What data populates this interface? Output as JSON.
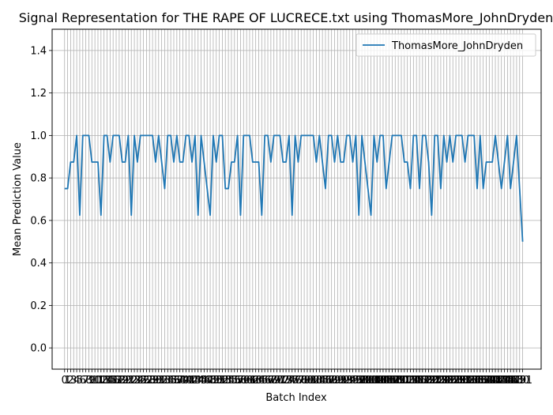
{
  "chart_data": {
    "type": "line",
    "title": "Signal Representation for THE RAPE OF LUCRECE.txt using ThomasMore_JohnDryden",
    "xlabel": "Batch Index",
    "ylabel": "Mean Prediction Value",
    "ylim": [
      -0.1,
      1.5
    ],
    "yticks": [
      0.0,
      0.2,
      0.4,
      0.6,
      0.8,
      1.0,
      1.2,
      1.4
    ],
    "ytick_labels": [
      "0.0",
      "0.2",
      "0.4",
      "0.6",
      "0.8",
      "1.0",
      "1.2",
      "1.4"
    ],
    "xlim": [
      -4.1,
      157.1
    ],
    "grid": true,
    "legend_placement": "top-right",
    "series": [
      {
        "name": "ThomasMore_JohnDryden",
        "color": "#1f77b4",
        "values": [
          0.75,
          0.75,
          0.875,
          0.875,
          1.0,
          0.625,
          1.0,
          1.0,
          1.0,
          0.875,
          0.875,
          0.875,
          0.625,
          1.0,
          1.0,
          0.875,
          1.0,
          1.0,
          1.0,
          0.875,
          0.875,
          1.0,
          0.625,
          1.0,
          0.875,
          1.0,
          1.0,
          1.0,
          1.0,
          1.0,
          0.875,
          1.0,
          0.875,
          0.75,
          1.0,
          1.0,
          0.875,
          1.0,
          0.875,
          0.875,
          1.0,
          1.0,
          0.875,
          1.0,
          0.625,
          1.0,
          0.875,
          0.75,
          0.625,
          1.0,
          0.875,
          1.0,
          1.0,
          0.75,
          0.75,
          0.875,
          0.875,
          1.0,
          0.625,
          1.0,
          1.0,
          1.0,
          0.875,
          0.875,
          0.875,
          0.625,
          1.0,
          1.0,
          0.875,
          1.0,
          1.0,
          1.0,
          0.875,
          0.875,
          1.0,
          0.625,
          1.0,
          0.875,
          1.0,
          1.0,
          1.0,
          1.0,
          1.0,
          0.875,
          1.0,
          0.875,
          0.75,
          1.0,
          1.0,
          0.875,
          1.0,
          0.875,
          0.875,
          1.0,
          1.0,
          0.875,
          1.0,
          0.625,
          1.0,
          0.875,
          0.75,
          0.625,
          1.0,
          0.875,
          1.0,
          1.0,
          0.75,
          0.875,
          1.0,
          1.0,
          1.0,
          1.0,
          0.875,
          0.875,
          0.75,
          1.0,
          1.0,
          0.75,
          1.0,
          1.0,
          0.875,
          0.625,
          1.0,
          1.0,
          0.75,
          1.0,
          0.875,
          1.0,
          0.875,
          1.0,
          1.0,
          1.0,
          0.875,
          1.0,
          1.0,
          1.0,
          0.75,
          1.0,
          0.75,
          0.875,
          0.875,
          0.875,
          1.0,
          0.875,
          0.75,
          0.875,
          1.0,
          0.75,
          0.875,
          1.0,
          0.75,
          0.5
        ]
      }
    ]
  }
}
